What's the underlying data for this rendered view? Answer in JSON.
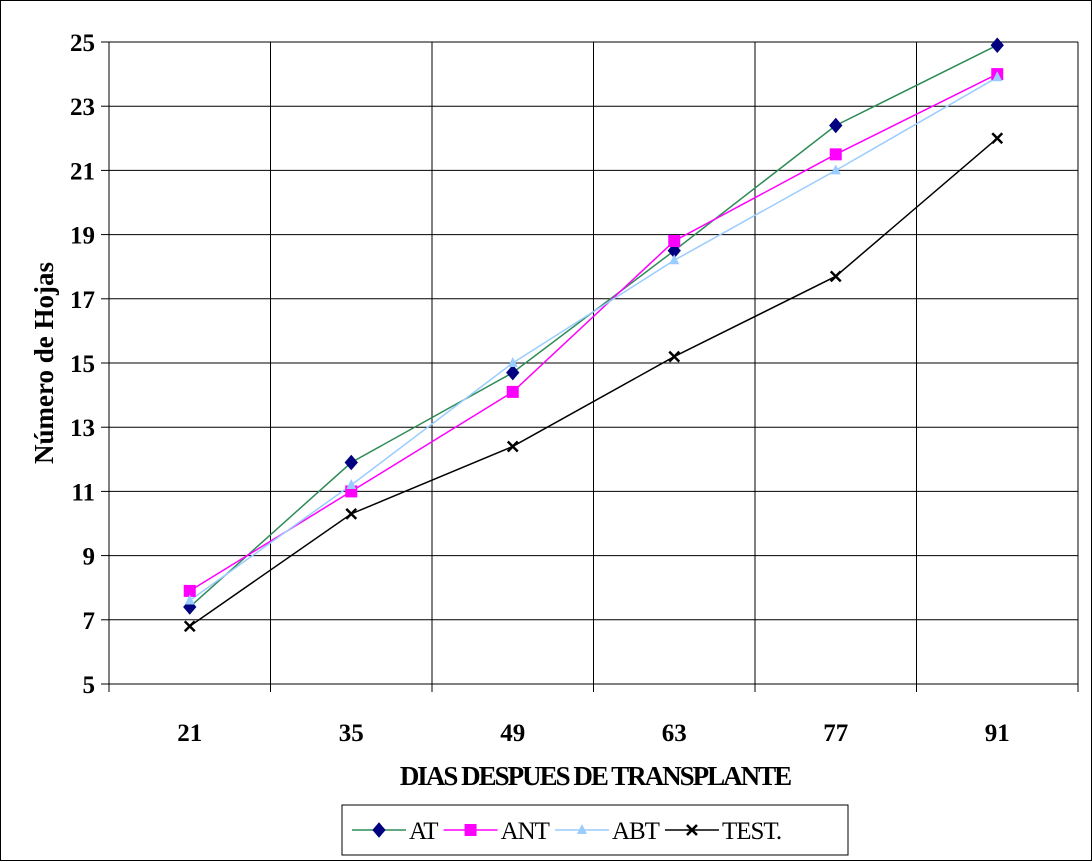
{
  "chart_data": {
    "type": "line",
    "xlabel": "DIAS DESPUES DE TRANSPLANTE",
    "ylabel": "Número de Hojas",
    "categories": [
      "21",
      "35",
      "49",
      "63",
      "77",
      "91"
    ],
    "ylim": [
      5,
      25
    ],
    "yticks": [
      5,
      7,
      9,
      11,
      13,
      15,
      17,
      19,
      21,
      23,
      25
    ],
    "grid": true,
    "legend_position": "bottom",
    "series": [
      {
        "name": "AT",
        "marker": "diamond",
        "color": "#000080",
        "line_color": "#2e8b57",
        "values": [
          7.4,
          11.9,
          14.7,
          18.5,
          22.4,
          24.9
        ]
      },
      {
        "name": "ANT",
        "marker": "square",
        "color": "#ff00ff",
        "line_color": "#ff00ff",
        "values": [
          7.9,
          11.0,
          14.1,
          18.8,
          21.5,
          24.0
        ]
      },
      {
        "name": "ABT",
        "marker": "triangle",
        "color": "#99ccff",
        "line_color": "#99ccff",
        "values": [
          7.6,
          11.2,
          15.0,
          18.2,
          21.0,
          23.9
        ]
      },
      {
        "name": "TEST.",
        "marker": "x",
        "color": "#000000",
        "line_color": "#000000",
        "values": [
          6.8,
          10.3,
          12.4,
          15.2,
          17.7,
          22.0
        ]
      }
    ]
  }
}
